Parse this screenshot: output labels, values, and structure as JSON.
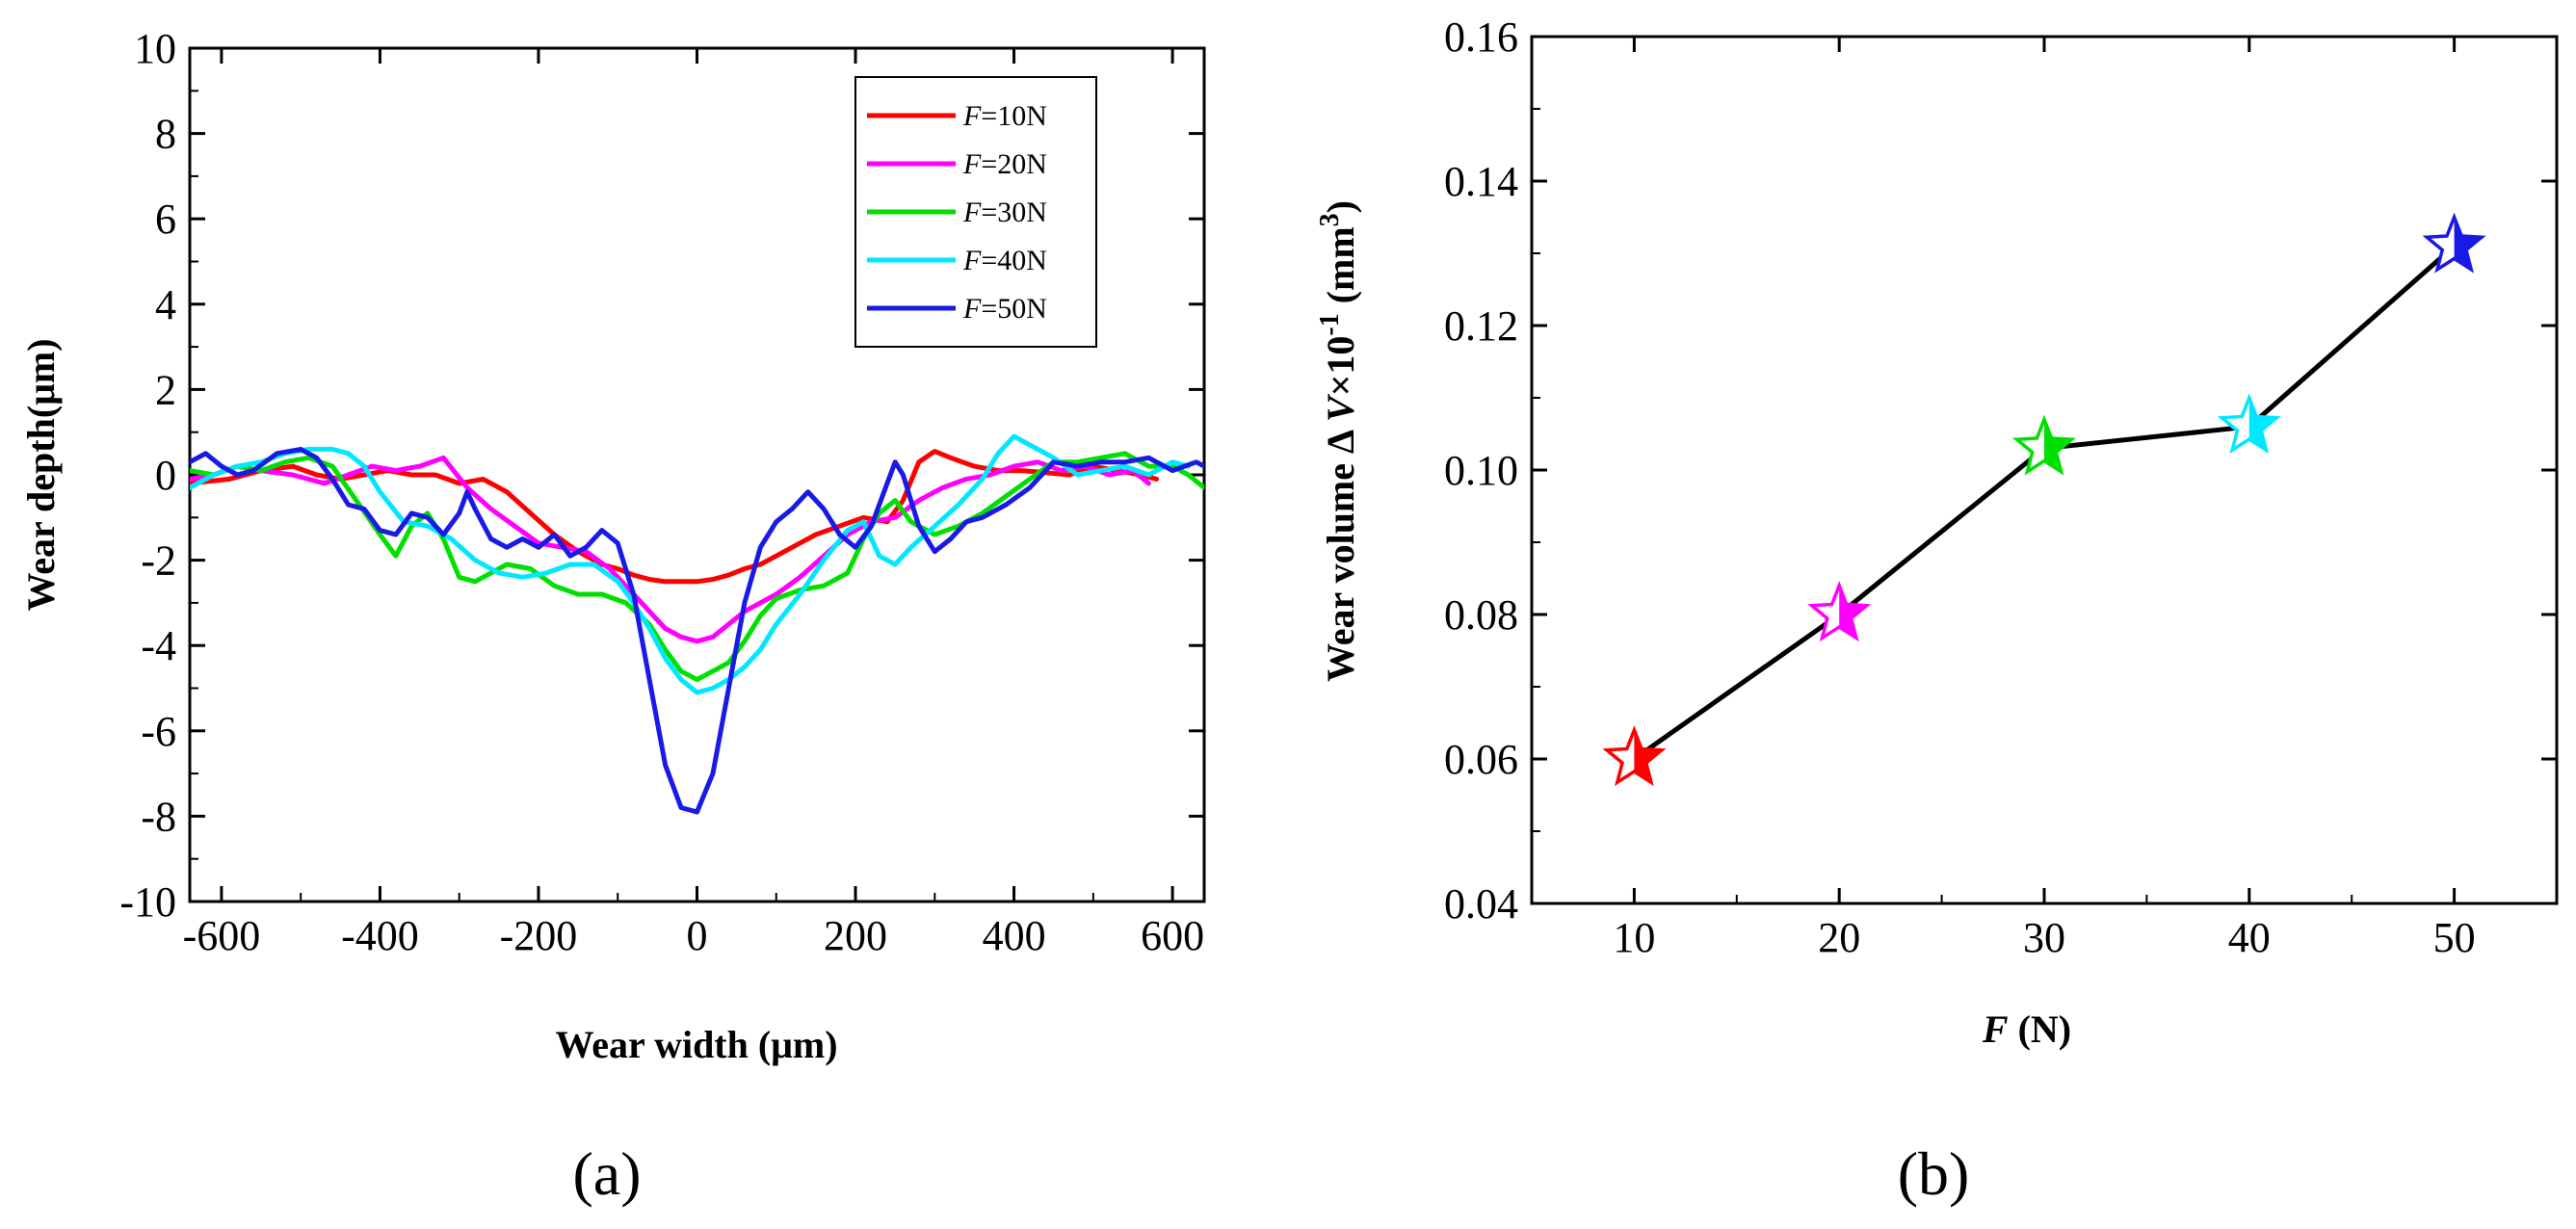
{
  "chart_data": [
    {
      "type": "line",
      "panel_label": "(a)",
      "xlabel": "Wear width (μm)",
      "ylabel": "Wear depth(μm)",
      "xlim": [
        -640,
        640
      ],
      "ylim": [
        -10,
        10
      ],
      "xticks": [
        -600,
        -400,
        -200,
        0,
        200,
        400,
        600
      ],
      "yticks": [
        -10,
        -8,
        -6,
        -4,
        -2,
        0,
        2,
        4,
        6,
        8,
        10
      ],
      "legend_position": "top-right",
      "series": [
        {
          "name": "F=10N",
          "legend_var": "F",
          "legend_rest": "=10N",
          "color": "#ff0000",
          "x": [
            -640,
            -590,
            -550,
            -510,
            -480,
            -450,
            -420,
            -390,
            -360,
            -330,
            -300,
            -270,
            -240,
            -210,
            -180,
            -150,
            -120,
            -100,
            -80,
            -60,
            -40,
            -20,
            0,
            20,
            40,
            60,
            80,
            100,
            120,
            150,
            180,
            210,
            240,
            260,
            280,
            300,
            320,
            350,
            380,
            410,
            440,
            470,
            500,
            530,
            560,
            580
          ],
          "y": [
            -0.2,
            -0.1,
            0.1,
            0.2,
            0.0,
            -0.1,
            0.0,
            0.1,
            0.0,
            0.0,
            -0.2,
            -0.1,
            -0.4,
            -0.9,
            -1.4,
            -1.8,
            -2.1,
            -2.2,
            -2.35,
            -2.45,
            -2.5,
            -2.5,
            -2.5,
            -2.45,
            -2.35,
            -2.2,
            -2.1,
            -1.9,
            -1.7,
            -1.4,
            -1.2,
            -1.0,
            -1.1,
            -0.6,
            0.3,
            0.55,
            0.4,
            0.2,
            0.1,
            0.1,
            0.05,
            0.0,
            0.2,
            0.1,
            0.0,
            -0.1
          ]
        },
        {
          "name": "F=20N",
          "legend_var": "F",
          "legend_rest": "=20N",
          "color": "#ff00ff",
          "x": [
            -640,
            -610,
            -580,
            -550,
            -510,
            -470,
            -440,
            -410,
            -380,
            -350,
            -320,
            -290,
            -260,
            -230,
            -200,
            -170,
            -140,
            -110,
            -80,
            -60,
            -40,
            -20,
            0,
            20,
            40,
            60,
            80,
            100,
            130,
            160,
            190,
            220,
            250,
            280,
            310,
            340,
            370,
            400,
            430,
            460,
            490,
            520,
            550,
            570
          ],
          "y": [
            -0.1,
            0.0,
            0.2,
            0.1,
            0.0,
            -0.2,
            0.0,
            0.2,
            0.1,
            0.2,
            0.4,
            -0.3,
            -0.8,
            -1.2,
            -1.6,
            -1.7,
            -1.8,
            -2.2,
            -2.8,
            -3.2,
            -3.6,
            -3.8,
            -3.9,
            -3.8,
            -3.5,
            -3.2,
            -3.0,
            -2.8,
            -2.4,
            -1.9,
            -1.4,
            -1.1,
            -1.0,
            -0.6,
            -0.3,
            -0.1,
            0.0,
            0.2,
            0.3,
            0.1,
            0.2,
            0.0,
            0.1,
            -0.2
          ]
        },
        {
          "name": "F=30N",
          "legend_var": "F",
          "legend_rest": "=30N",
          "color": "#00e000",
          "x": [
            -640,
            -610,
            -580,
            -550,
            -520,
            -490,
            -460,
            -430,
            -400,
            -380,
            -360,
            -340,
            -320,
            -300,
            -280,
            -260,
            -240,
            -210,
            -180,
            -150,
            -120,
            -90,
            -60,
            -40,
            -20,
            0,
            20,
            40,
            60,
            80,
            100,
            130,
            160,
            190,
            210,
            230,
            250,
            270,
            300,
            330,
            360,
            390,
            420,
            450,
            480,
            510,
            540,
            570,
            600,
            620,
            640
          ],
          "y": [
            0.1,
            0.0,
            0.2,
            0.1,
            0.3,
            0.4,
            0.2,
            -0.6,
            -1.4,
            -1.9,
            -1.2,
            -0.9,
            -1.5,
            -2.4,
            -2.5,
            -2.3,
            -2.1,
            -2.2,
            -2.6,
            -2.8,
            -2.8,
            -3.0,
            -3.5,
            -4.1,
            -4.6,
            -4.8,
            -4.6,
            -4.4,
            -3.9,
            -3.3,
            -2.9,
            -2.7,
            -2.6,
            -2.3,
            -1.5,
            -0.9,
            -0.6,
            -1.1,
            -1.4,
            -1.2,
            -0.9,
            -0.5,
            -0.1,
            0.3,
            0.3,
            0.4,
            0.5,
            0.2,
            0.2,
            0.0,
            -0.3
          ]
        },
        {
          "name": "F=40N",
          "legend_var": "F",
          "legend_rest": "=40N",
          "color": "#00e8ff",
          "x": [
            -640,
            -610,
            -580,
            -550,
            -520,
            -490,
            -460,
            -440,
            -420,
            -400,
            -370,
            -340,
            -310,
            -280,
            -250,
            -220,
            -190,
            -160,
            -130,
            -100,
            -80,
            -60,
            -40,
            -20,
            0,
            20,
            40,
            60,
            80,
            100,
            130,
            160,
            190,
            210,
            230,
            250,
            270,
            300,
            330,
            360,
            380,
            400,
            420,
            450,
            480,
            510,
            540,
            570,
            600,
            620
          ],
          "y": [
            -0.3,
            0.0,
            0.2,
            0.3,
            0.5,
            0.6,
            0.6,
            0.5,
            0.2,
            -0.4,
            -1.1,
            -1.2,
            -1.5,
            -2.0,
            -2.3,
            -2.4,
            -2.3,
            -2.1,
            -2.1,
            -2.5,
            -3.0,
            -3.6,
            -4.3,
            -4.8,
            -5.1,
            -5.0,
            -4.8,
            -4.5,
            -4.1,
            -3.5,
            -2.8,
            -2.0,
            -1.3,
            -1.1,
            -1.9,
            -2.1,
            -1.7,
            -1.2,
            -0.7,
            -0.1,
            0.5,
            0.9,
            0.7,
            0.4,
            0.0,
            0.1,
            0.2,
            0.0,
            0.3,
            0.2
          ]
        },
        {
          "name": "F=50N",
          "legend_var": "F",
          "legend_rest": "=50N",
          "color": "#1a1ae6",
          "x": [
            -640,
            -620,
            -600,
            -580,
            -560,
            -530,
            -500,
            -480,
            -460,
            -440,
            -420,
            -400,
            -380,
            -360,
            -340,
            -320,
            -300,
            -290,
            -280,
            -260,
            -240,
            -220,
            -200,
            -180,
            -160,
            -140,
            -120,
            -100,
            -80,
            -60,
            -40,
            -20,
            0,
            20,
            40,
            60,
            80,
            100,
            120,
            140,
            160,
            180,
            200,
            220,
            240,
            250,
            260,
            280,
            300,
            320,
            340,
            360,
            390,
            420,
            450,
            480,
            510,
            540,
            570,
            600,
            630,
            640
          ],
          "y": [
            0.3,
            0.5,
            0.2,
            0.0,
            0.1,
            0.5,
            0.6,
            0.4,
            -0.1,
            -0.7,
            -0.8,
            -1.3,
            -1.4,
            -0.9,
            -1.0,
            -1.4,
            -0.9,
            -0.4,
            -0.8,
            -1.5,
            -1.7,
            -1.5,
            -1.7,
            -1.4,
            -1.9,
            -1.7,
            -1.3,
            -1.6,
            -2.8,
            -4.8,
            -6.8,
            -7.8,
            -7.9,
            -7.0,
            -5.0,
            -3.0,
            -1.7,
            -1.1,
            -0.8,
            -0.4,
            -0.8,
            -1.4,
            -1.7,
            -1.2,
            -0.2,
            0.3,
            0.0,
            -1.2,
            -1.8,
            -1.5,
            -1.1,
            -1.0,
            -0.7,
            -0.3,
            0.3,
            0.2,
            0.3,
            0.3,
            0.4,
            0.1,
            0.3,
            0.2
          ]
        }
      ]
    },
    {
      "type": "line",
      "panel_label": "(b)",
      "xlabel_var": "F",
      "xlabel_rest": " (N)",
      "ylabel_pre": "Wear volume Δ ",
      "ylabel_var": "V",
      "ylabel_mid": "×10",
      "ylabel_exp1": "-1",
      "ylabel_unit": " (mm",
      "ylabel_exp2": "3",
      "ylabel_close": ")",
      "xlim": [
        5,
        55
      ],
      "ylim": [
        0.04,
        0.16
      ],
      "xticks": [
        10,
        20,
        30,
        40,
        50
      ],
      "yticks": [
        0.04,
        0.06,
        0.08,
        0.1,
        0.12,
        0.14,
        0.16
      ],
      "ytick_labels": [
        "0.04",
        "0.06",
        "0.08",
        "0.10",
        "0.12",
        "0.14",
        "0.16"
      ],
      "x": [
        10,
        20,
        30,
        40,
        50
      ],
      "y": [
        0.06,
        0.08,
        0.103,
        0.106,
        0.131
      ],
      "line_color": "#000000",
      "marker": "star",
      "marker_colors": [
        "#ff0000",
        "#ff00ff",
        "#00e000",
        "#00e8ff",
        "#1a1ae6"
      ],
      "marker_filled_fraction": [
        0.5,
        0.5,
        0.5,
        0.5,
        0.5
      ]
    }
  ]
}
